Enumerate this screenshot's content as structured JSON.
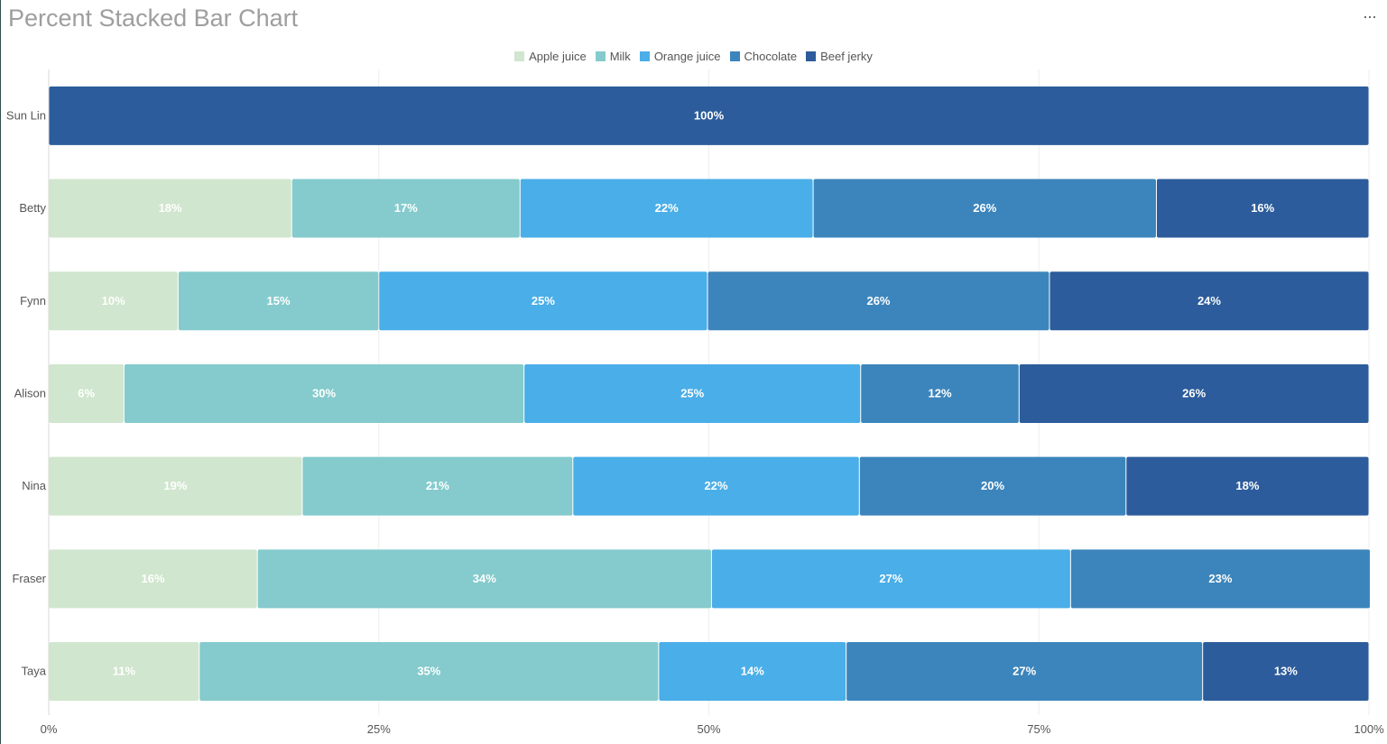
{
  "header": {
    "title": "Percent Stacked Bar Chart",
    "menu_label": "···"
  },
  "chart_data": {
    "type": "bar",
    "orientation": "horizontal",
    "stacking": "percent",
    "title": "Percent Stacked Bar Chart",
    "xlabel": "",
    "ylabel": "",
    "xlim": [
      0,
      100
    ],
    "x_ticks": [
      "0%",
      "25%",
      "50%",
      "75%",
      "100%"
    ],
    "legend_position": "top-center",
    "grid": true,
    "categories": [
      "Sun Lin",
      "Betty",
      "Fynn",
      "Alison",
      "Nina",
      "Fraser",
      "Taya"
    ],
    "series": [
      {
        "name": "Apple juice",
        "color": "#d0e6ce",
        "label_color": "#ffffff",
        "values": [
          0,
          18.4,
          9.8,
          5.7,
          19.2,
          15.8,
          11.4
        ]
      },
      {
        "name": "Milk",
        "color": "#85cbcd",
        "label_color": "#ffffff",
        "values": [
          0,
          17.3,
          15.2,
          30.3,
          20.5,
          34.4,
          34.8
        ]
      },
      {
        "name": "Orange juice",
        "color": "#4aaee8",
        "label_color": "#ffffff",
        "values": [
          0,
          22.2,
          24.9,
          25.5,
          21.7,
          27.2,
          14.2
        ]
      },
      {
        "name": "Chocolate",
        "color": "#3c85bc",
        "label_color": "#ffffff",
        "values": [
          0,
          26.0,
          25.9,
          12.0,
          20.2,
          22.7,
          27.0
        ]
      },
      {
        "name": "Beef jerky",
        "color": "#2c5c9b",
        "label_color": "#ffffff",
        "values": [
          100,
          16.1,
          24.2,
          26.5,
          18.4,
          0,
          12.6
        ]
      }
    ],
    "data_labels": [
      [
        "",
        "",
        "",
        "",
        "100%"
      ],
      [
        "18%",
        "17%",
        "22%",
        "26%",
        "16%"
      ],
      [
        "10%",
        "15%",
        "25%",
        "26%",
        "24%"
      ],
      [
        "6%",
        "30%",
        "25%",
        "12%",
        "26%"
      ],
      [
        "19%",
        "21%",
        "22%",
        "20%",
        "18%"
      ],
      [
        "16%",
        "34%",
        "27%",
        "23%",
        ""
      ],
      [
        "11%",
        "35%",
        "14%",
        "27%",
        "13%"
      ]
    ]
  }
}
